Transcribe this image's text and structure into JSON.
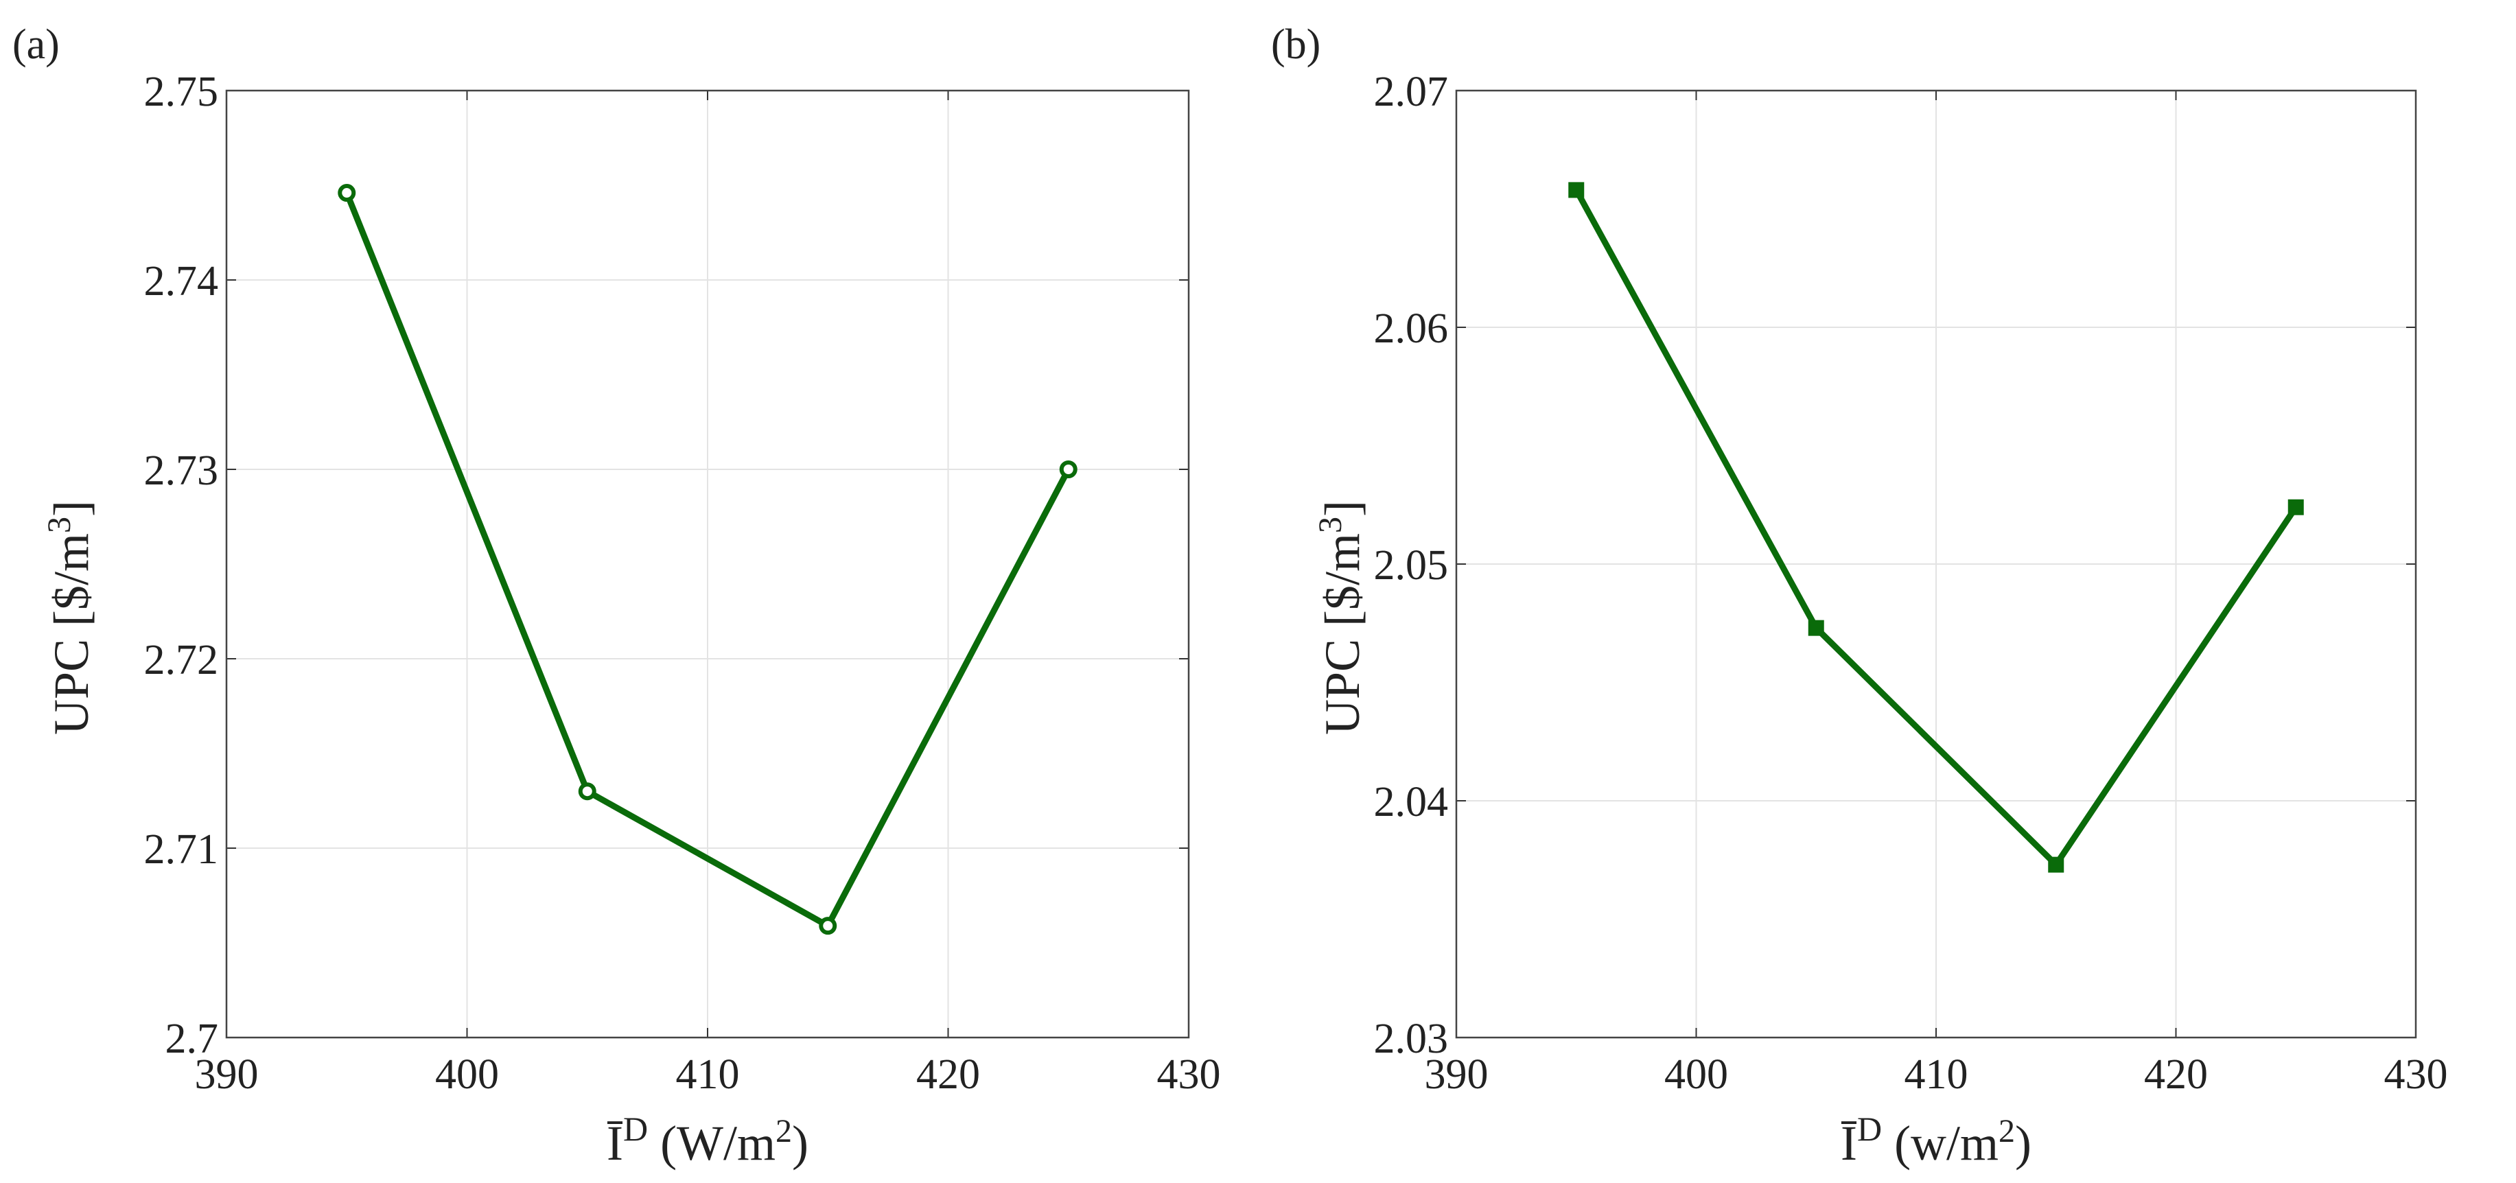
{
  "chart_data": [
    {
      "type": "line",
      "panel_label": "(a)",
      "title": "",
      "x": [
        395,
        405,
        415,
        425
      ],
      "series": [
        {
          "name": "UPC",
          "values": [
            2.7446,
            2.713,
            2.7059,
            2.73
          ],
          "marker": "circle",
          "color": "#0a6b0a"
        }
      ],
      "xlim": [
        390,
        430
      ],
      "ylim": [
        2.7,
        2.75
      ],
      "xticks": [
        390,
        400,
        410,
        420,
        430
      ],
      "yticks": [
        2.7,
        2.71,
        2.72,
        2.73,
        2.74,
        2.75
      ],
      "xtick_labels": [
        "390",
        "400",
        "410",
        "420",
        "430"
      ],
      "ytick_labels": [
        "2.7",
        "2.71",
        "2.72",
        "2.73",
        "2.74",
        "2.75"
      ],
      "xlabel": {
        "symbol": "Ī",
        "sup": "D",
        "unit_open": "(W/m",
        "unit_sup": "2",
        "unit_close": ")"
      },
      "ylabel": {
        "text": "UPC [$/m",
        "sup": "3",
        "close": "]"
      },
      "grid": true
    },
    {
      "type": "line",
      "panel_label": "(b)",
      "title": "",
      "x": [
        395,
        405,
        415,
        425
      ],
      "series": [
        {
          "name": "UPC",
          "values": [
            2.0658,
            2.0473,
            2.0373,
            2.0524
          ],
          "marker": "square",
          "color": "#0a6b0a"
        }
      ],
      "xlim": [
        390,
        430
      ],
      "ylim": [
        2.03,
        2.07
      ],
      "xticks": [
        390,
        400,
        410,
        420,
        430
      ],
      "yticks": [
        2.03,
        2.04,
        2.05,
        2.06,
        2.07
      ],
      "xtick_labels": [
        "390",
        "400",
        "410",
        "420",
        "430"
      ],
      "ytick_labels": [
        "2.03",
        "2.04",
        "2.05",
        "2.06",
        "2.07"
      ],
      "xlabel": {
        "symbol": "Ī",
        "sup": "D",
        "unit_open": "(w/m",
        "unit_sup": "2",
        "unit_close": ")"
      },
      "ylabel": {
        "text": "UPC [$/m",
        "sup": "3",
        "close": "]"
      },
      "grid": true
    }
  ]
}
